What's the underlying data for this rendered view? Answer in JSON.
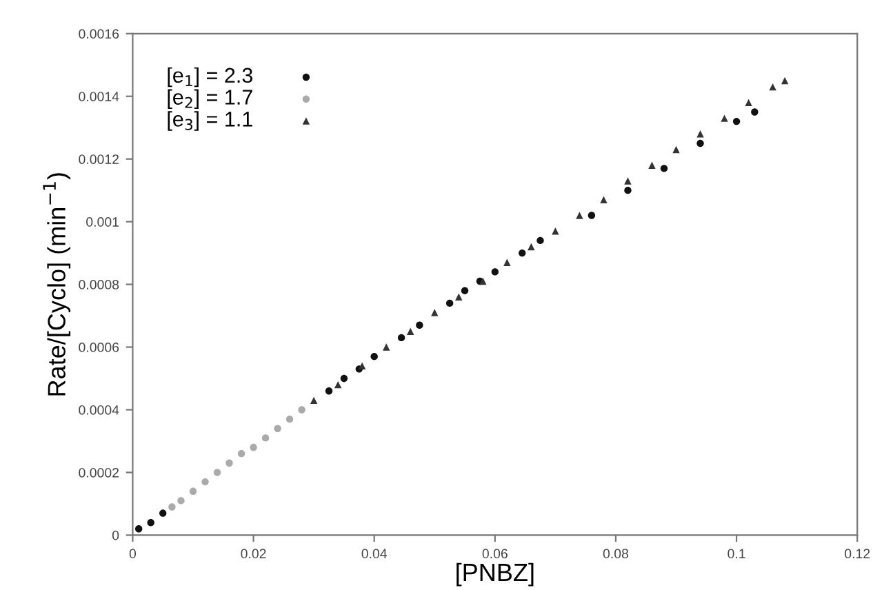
{
  "chart_data": {
    "type": "scatter",
    "xlabel": "[PNBZ]",
    "ylabel": "Rate/[Cyclo] (min$^{−1}$)",
    "xlim": [
      0,
      0.12
    ],
    "xticks": [
      0,
      0.02,
      0.04,
      0.06,
      0.08,
      0.1,
      0.12
    ],
    "ylim": [
      0,
      0.0016
    ],
    "yticks": [
      0,
      0.0002,
      0.0004,
      0.0006,
      0.0008,
      0.001,
      0.0012,
      0.0014,
      0.0016
    ],
    "grid": false,
    "legend": "top left",
    "series": [
      {
        "name": "[e$_{1}$] = 2.3",
        "color": "#111111",
        "marker": "circle",
        "x": [
          0.001,
          0.003,
          0.005,
          0.0325,
          0.035,
          0.0375,
          0.04,
          0.0445,
          0.0475,
          0.0525,
          0.055,
          0.0575,
          0.06,
          0.0645,
          0.0675,
          0.076,
          0.082,
          0.088,
          0.094,
          0.1,
          0.103
        ],
        "values": [
          2e-05,
          4e-05,
          7e-05,
          0.00046,
          0.0005,
          0.00053,
          0.00057,
          0.00063,
          0.00067,
          0.00074,
          0.00078,
          0.00081,
          0.00084,
          0.0009,
          0.00094,
          0.00102,
          0.0011,
          0.00117,
          0.00125,
          0.00132,
          0.00135
        ]
      },
      {
        "name": "[e$_{2}$] = 1.7",
        "color": "#aaaaaa",
        "marker": "circle",
        "x": [
          0.0065,
          0.008,
          0.01,
          0.012,
          0.014,
          0.016,
          0.018,
          0.02,
          0.022,
          0.024,
          0.026,
          0.028
        ],
        "values": [
          9e-05,
          0.00011,
          0.00014,
          0.00017,
          0.0002,
          0.00023,
          0.00026,
          0.00028,
          0.00031,
          0.00034,
          0.00037,
          0.0004
        ]
      },
      {
        "name": "[e$_{3}$] = 1.1",
        "color": "#333333",
        "marker": "triangle",
        "x": [
          0.03,
          0.034,
          0.038,
          0.042,
          0.046,
          0.05,
          0.054,
          0.058,
          0.062,
          0.066,
          0.07,
          0.074,
          0.078,
          0.082,
          0.086,
          0.09,
          0.094,
          0.098,
          0.102,
          0.106,
          0.108
        ],
        "values": [
          0.00043,
          0.00048,
          0.00054,
          0.0006,
          0.00065,
          0.00071,
          0.00076,
          0.00081,
          0.00087,
          0.00092,
          0.00097,
          0.00102,
          0.00107,
          0.00113,
          0.00118,
          0.00123,
          0.00128,
          0.00133,
          0.00138,
          0.00143,
          0.00145
        ]
      }
    ]
  }
}
